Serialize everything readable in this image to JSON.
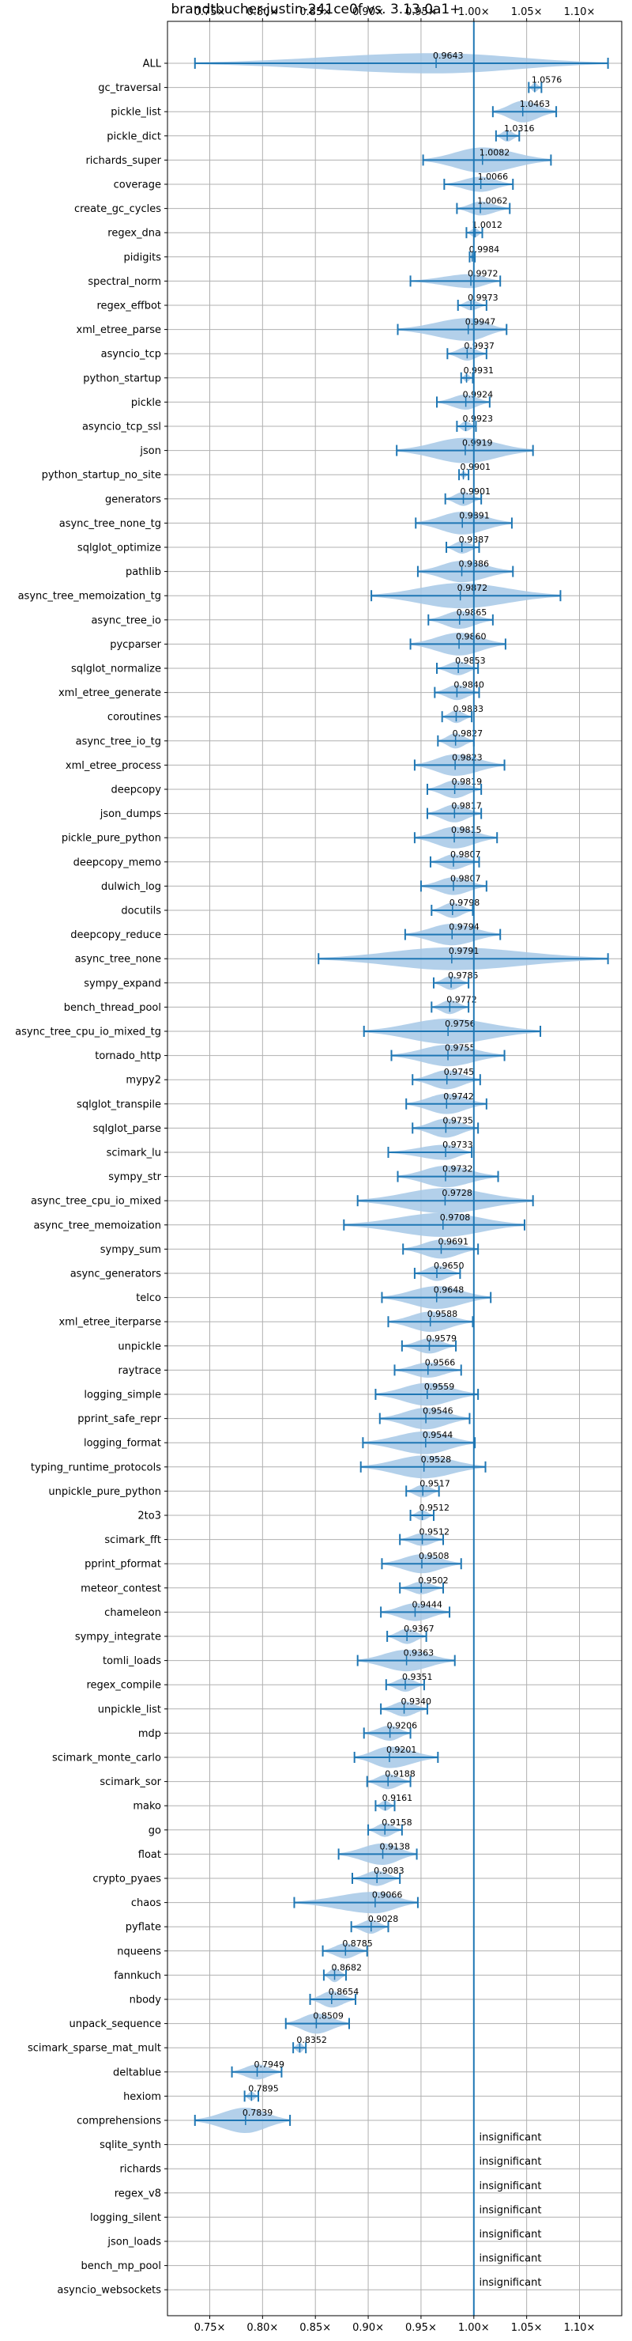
{
  "chart_data": {
    "type": "violin",
    "title": "brandtbucher-justin-241ce0f vs. 3.13.0a1+",
    "xlabel": "",
    "ylabel": "",
    "xlim": [
      0.71,
      1.14
    ],
    "x_ticks": [
      0.75,
      0.8,
      0.85,
      0.9,
      0.95,
      1.0,
      1.05,
      1.1
    ],
    "x_tick_labels": [
      "0.75×",
      "0.80×",
      "0.85×",
      "0.90×",
      "0.95×",
      "1.00×",
      "1.05×",
      "1.10×"
    ],
    "reference_line": 1.0,
    "grid": true,
    "colors": {
      "violin": "#a6c8e6",
      "stat": "#1f77b4",
      "reference": "#1f77b4",
      "grid": "#b0b0b0"
    },
    "insignificant_label": "insignificant",
    "benchmarks": [
      {
        "name": "ALL",
        "value": 0.9643,
        "label": "0.9643",
        "min": 0.736,
        "max": 1.127,
        "width": 0.8
      },
      {
        "name": "gc_traversal",
        "value": 1.0576,
        "label": "1.0576",
        "min": 1.052,
        "max": 1.064,
        "width": 0.35
      },
      {
        "name": "pickle_list",
        "value": 1.0463,
        "label": "1.0463",
        "min": 1.018,
        "max": 1.078,
        "width": 0.85
      },
      {
        "name": "pickle_dict",
        "value": 1.0316,
        "label": "1.0316",
        "min": 1.021,
        "max": 1.043,
        "width": 0.45
      },
      {
        "name": "richards_super",
        "value": 1.0082,
        "label": "1.0082",
        "min": 0.952,
        "max": 1.073,
        "width": 1.0
      },
      {
        "name": "coverage",
        "value": 1.0066,
        "label": "1.0066",
        "min": 0.972,
        "max": 1.037,
        "width": 0.6
      },
      {
        "name": "create_gc_cycles",
        "value": 1.0062,
        "label": "1.0062",
        "min": 0.984,
        "max": 1.034,
        "width": 0.55
      },
      {
        "name": "regex_dna",
        "value": 1.0012,
        "label": "1.0012",
        "min": 0.993,
        "max": 1.008,
        "width": 0.35
      },
      {
        "name": "pidigits",
        "value": 0.9984,
        "label": "0.9984",
        "min": 0.996,
        "max": 1.001,
        "width": 0.2
      },
      {
        "name": "spectral_norm",
        "value": 0.9972,
        "label": "0.9972",
        "min": 0.94,
        "max": 1.025,
        "width": 0.55
      },
      {
        "name": "regex_effbot",
        "value": 0.9973,
        "label": "0.9973",
        "min": 0.985,
        "max": 1.012,
        "width": 0.4
      },
      {
        "name": "xml_etree_parse",
        "value": 0.9947,
        "label": "0.9947",
        "min": 0.928,
        "max": 1.031,
        "width": 0.9
      },
      {
        "name": "asyncio_tcp",
        "value": 0.9937,
        "label": "0.9937",
        "min": 0.975,
        "max": 1.012,
        "width": 0.55
      },
      {
        "name": "python_startup",
        "value": 0.9931,
        "label": "0.9931",
        "min": 0.988,
        "max": 0.999,
        "width": 0.3
      },
      {
        "name": "pickle",
        "value": 0.9924,
        "label": "0.9924",
        "min": 0.965,
        "max": 1.015,
        "width": 0.6
      },
      {
        "name": "asyncio_tcp_ssl",
        "value": 0.9923,
        "label": "0.9923",
        "min": 0.984,
        "max": 1.002,
        "width": 0.4
      },
      {
        "name": "json",
        "value": 0.9919,
        "label": "0.9919",
        "min": 0.927,
        "max": 1.056,
        "width": 1.0
      },
      {
        "name": "python_startup_no_site",
        "value": 0.9901,
        "label": "0.9901",
        "min": 0.986,
        "max": 0.995,
        "width": 0.25
      },
      {
        "name": "generators",
        "value": 0.9901,
        "label": "0.9901",
        "min": 0.973,
        "max": 1.007,
        "width": 0.55
      },
      {
        "name": "async_tree_none_tg",
        "value": 0.9891,
        "label": "0.9891",
        "min": 0.945,
        "max": 1.036,
        "width": 0.9
      },
      {
        "name": "sqlglot_optimize",
        "value": 0.9887,
        "label": "0.9887",
        "min": 0.974,
        "max": 1.005,
        "width": 0.5
      },
      {
        "name": "pathlib",
        "value": 0.9886,
        "label": "0.9886",
        "min": 0.947,
        "max": 1.037,
        "width": 0.85
      },
      {
        "name": "async_tree_memoization_tg",
        "value": 0.9872,
        "label": "0.9872",
        "min": 0.903,
        "max": 1.082,
        "width": 1.0
      },
      {
        "name": "async_tree_io",
        "value": 0.9865,
        "label": "0.9865",
        "min": 0.957,
        "max": 1.018,
        "width": 0.7
      },
      {
        "name": "pycparser",
        "value": 0.986,
        "label": "0.9860",
        "min": 0.94,
        "max": 1.03,
        "width": 0.9
      },
      {
        "name": "sqlglot_normalize",
        "value": 0.9853,
        "label": "0.9853",
        "min": 0.965,
        "max": 1.004,
        "width": 0.55
      },
      {
        "name": "xml_etree_generate",
        "value": 0.984,
        "label": "0.9840",
        "min": 0.963,
        "max": 1.005,
        "width": 0.6
      },
      {
        "name": "coroutines",
        "value": 0.9833,
        "label": "0.9833",
        "min": 0.97,
        "max": 0.998,
        "width": 0.5
      },
      {
        "name": "async_tree_io_tg",
        "value": 0.9827,
        "label": "0.9827",
        "min": 0.966,
        "max": 1.0,
        "width": 0.6
      },
      {
        "name": "xml_etree_process",
        "value": 0.9823,
        "label": "0.9823",
        "min": 0.944,
        "max": 1.029,
        "width": 0.85
      },
      {
        "name": "deepcopy",
        "value": 0.9819,
        "label": "0.9819",
        "min": 0.956,
        "max": 1.007,
        "width": 0.7
      },
      {
        "name": "json_dumps",
        "value": 0.9817,
        "label": "0.9817",
        "min": 0.956,
        "max": 1.007,
        "width": 0.7
      },
      {
        "name": "pickle_pure_python",
        "value": 0.9815,
        "label": "0.9815",
        "min": 0.944,
        "max": 1.022,
        "width": 0.85
      },
      {
        "name": "deepcopy_memo",
        "value": 0.9807,
        "label": "0.9807",
        "min": 0.959,
        "max": 1.005,
        "width": 0.6
      },
      {
        "name": "dulwich_log",
        "value": 0.9807,
        "label": "0.9807",
        "min": 0.95,
        "max": 1.012,
        "width": 0.7
      },
      {
        "name": "docutils",
        "value": 0.9798,
        "label": "0.9798",
        "min": 0.96,
        "max": 0.999,
        "width": 0.6
      },
      {
        "name": "deepcopy_reduce",
        "value": 0.9794,
        "label": "0.9794",
        "min": 0.935,
        "max": 1.025,
        "width": 0.85
      },
      {
        "name": "async_tree_none",
        "value": 0.9791,
        "label": "0.9791",
        "min": 0.853,
        "max": 1.127,
        "width": 0.9
      },
      {
        "name": "sympy_expand",
        "value": 0.9785,
        "label": "0.9785",
        "min": 0.962,
        "max": 0.995,
        "width": 0.55
      },
      {
        "name": "bench_thread_pool",
        "value": 0.9772,
        "label": "0.9772",
        "min": 0.96,
        "max": 0.995,
        "width": 0.55
      },
      {
        "name": "async_tree_cpu_io_mixed_tg",
        "value": 0.9756,
        "label": "0.9756",
        "min": 0.896,
        "max": 1.063,
        "width": 1.0
      },
      {
        "name": "tornado_http",
        "value": 0.9755,
        "label": "0.9755",
        "min": 0.922,
        "max": 1.029,
        "width": 0.85
      },
      {
        "name": "mypy2",
        "value": 0.9745,
        "label": "0.9745",
        "min": 0.942,
        "max": 1.006,
        "width": 0.75
      },
      {
        "name": "sqlglot_transpile",
        "value": 0.9742,
        "label": "0.9742",
        "min": 0.936,
        "max": 1.012,
        "width": 0.8
      },
      {
        "name": "sqlglot_parse",
        "value": 0.9735,
        "label": "0.9735",
        "min": 0.942,
        "max": 1.004,
        "width": 0.75
      },
      {
        "name": "scimark_lu",
        "value": 0.9733,
        "label": "0.9733",
        "min": 0.919,
        "max": 0.998,
        "width": 0.6
      },
      {
        "name": "sympy_str",
        "value": 0.9732,
        "label": "0.9732",
        "min": 0.928,
        "max": 1.023,
        "width": 0.85
      },
      {
        "name": "async_tree_cpu_io_mixed",
        "value": 0.9728,
        "label": "0.9728",
        "min": 0.89,
        "max": 1.056,
        "width": 1.0
      },
      {
        "name": "async_tree_memoization",
        "value": 0.9708,
        "label": "0.9708",
        "min": 0.877,
        "max": 1.048,
        "width": 0.95
      },
      {
        "name": "sympy_sum",
        "value": 0.9691,
        "label": "0.9691",
        "min": 0.933,
        "max": 1.004,
        "width": 0.75
      },
      {
        "name": "async_generators",
        "value": 0.965,
        "label": "0.9650",
        "min": 0.944,
        "max": 0.987,
        "width": 0.6
      },
      {
        "name": "telco",
        "value": 0.9648,
        "label": "0.9648",
        "min": 0.913,
        "max": 1.016,
        "width": 0.9
      },
      {
        "name": "xml_etree_iterparse",
        "value": 0.9588,
        "label": "0.9588",
        "min": 0.919,
        "max": 0.999,
        "width": 0.8
      },
      {
        "name": "unpickle",
        "value": 0.9579,
        "label": "0.9579",
        "min": 0.932,
        "max": 0.983,
        "width": 0.6
      },
      {
        "name": "raytrace",
        "value": 0.9566,
        "label": "0.9566",
        "min": 0.925,
        "max": 0.988,
        "width": 0.6
      },
      {
        "name": "logging_simple",
        "value": 0.9559,
        "label": "0.9559",
        "min": 0.907,
        "max": 1.004,
        "width": 0.9
      },
      {
        "name": "pprint_safe_repr",
        "value": 0.9546,
        "label": "0.9546",
        "min": 0.911,
        "max": 0.996,
        "width": 0.85
      },
      {
        "name": "logging_format",
        "value": 0.9544,
        "label": "0.9544",
        "min": 0.895,
        "max": 1.001,
        "width": 0.9
      },
      {
        "name": "typing_runtime_protocols",
        "value": 0.9528,
        "label": "0.9528",
        "min": 0.893,
        "max": 1.011,
        "width": 0.9
      },
      {
        "name": "unpickle_pure_python",
        "value": 0.9517,
        "label": "0.9517",
        "min": 0.936,
        "max": 0.967,
        "width": 0.5
      },
      {
        "name": "2to3",
        "value": 0.9512,
        "label": "0.9512",
        "min": 0.94,
        "max": 0.962,
        "width": 0.4
      },
      {
        "name": "scimark_fft",
        "value": 0.9512,
        "label": "0.9512",
        "min": 0.93,
        "max": 0.971,
        "width": 0.5
      },
      {
        "name": "pprint_pformat",
        "value": 0.9508,
        "label": "0.9508",
        "min": 0.913,
        "max": 0.988,
        "width": 0.75
      },
      {
        "name": "meteor_contest",
        "value": 0.9502,
        "label": "0.9502",
        "min": 0.93,
        "max": 0.971,
        "width": 0.5
      },
      {
        "name": "chameleon",
        "value": 0.9444,
        "label": "0.9444",
        "min": 0.912,
        "max": 0.977,
        "width": 0.7
      },
      {
        "name": "sympy_integrate",
        "value": 0.9367,
        "label": "0.9367",
        "min": 0.918,
        "max": 0.955,
        "width": 0.6
      },
      {
        "name": "tomli_loads",
        "value": 0.9363,
        "label": "0.9363",
        "min": 0.89,
        "max": 0.982,
        "width": 0.85
      },
      {
        "name": "regex_compile",
        "value": 0.9351,
        "label": "0.9351",
        "min": 0.917,
        "max": 0.953,
        "width": 0.55
      },
      {
        "name": "unpickle_list",
        "value": 0.934,
        "label": "0.9340",
        "min": 0.912,
        "max": 0.956,
        "width": 0.6
      },
      {
        "name": "mdp",
        "value": 0.9206,
        "label": "0.9206",
        "min": 0.896,
        "max": 0.94,
        "width": 0.6
      },
      {
        "name": "scimark_monte_carlo",
        "value": 0.9201,
        "label": "0.9201",
        "min": 0.887,
        "max": 0.966,
        "width": 0.85
      },
      {
        "name": "scimark_sor",
        "value": 0.9188,
        "label": "0.9188",
        "min": 0.899,
        "max": 0.94,
        "width": 0.6
      },
      {
        "name": "mako",
        "value": 0.9161,
        "label": "0.9161",
        "min": 0.907,
        "max": 0.925,
        "width": 0.4
      },
      {
        "name": "go",
        "value": 0.9158,
        "label": "0.9158",
        "min": 0.9,
        "max": 0.932,
        "width": 0.55
      },
      {
        "name": "float",
        "value": 0.9138,
        "label": "0.9138",
        "min": 0.872,
        "max": 0.946,
        "width": 0.85
      },
      {
        "name": "crypto_pyaes",
        "value": 0.9083,
        "label": "0.9083",
        "min": 0.885,
        "max": 0.93,
        "width": 0.6
      },
      {
        "name": "chaos",
        "value": 0.9066,
        "label": "0.9066",
        "min": 0.83,
        "max": 0.947,
        "width": 0.85
      },
      {
        "name": "pyflate",
        "value": 0.9028,
        "label": "0.9028",
        "min": 0.884,
        "max": 0.919,
        "width": 0.55
      },
      {
        "name": "nqueens",
        "value": 0.8785,
        "label": "0.8785",
        "min": 0.857,
        "max": 0.899,
        "width": 0.6
      },
      {
        "name": "fannkuch",
        "value": 0.8682,
        "label": "0.8682",
        "min": 0.858,
        "max": 0.879,
        "width": 0.55
      },
      {
        "name": "nbody",
        "value": 0.8654,
        "label": "0.8654",
        "min": 0.845,
        "max": 0.888,
        "width": 0.65
      },
      {
        "name": "unpack_sequence",
        "value": 0.8509,
        "label": "0.8509",
        "min": 0.822,
        "max": 0.882,
        "width": 0.8
      },
      {
        "name": "scimark_sparse_mat_mult",
        "value": 0.8352,
        "label": "0.8352",
        "min": 0.829,
        "max": 0.841,
        "width": 0.4
      },
      {
        "name": "deltablue",
        "value": 0.7949,
        "label": "0.7949",
        "min": 0.771,
        "max": 0.818,
        "width": 0.6
      },
      {
        "name": "hexiom",
        "value": 0.7895,
        "label": "0.7895",
        "min": 0.783,
        "max": 0.796,
        "width": 0.35
      },
      {
        "name": "comprehensions",
        "value": 0.7839,
        "label": "0.7839",
        "min": 0.736,
        "max": 0.826,
        "width": 1.0
      },
      {
        "name": "sqlite_synth",
        "value": null,
        "label": "insignificant"
      },
      {
        "name": "richards",
        "value": null,
        "label": "insignificant"
      },
      {
        "name": "regex_v8",
        "value": null,
        "label": "insignificant"
      },
      {
        "name": "logging_silent",
        "value": null,
        "label": "insignificant"
      },
      {
        "name": "json_loads",
        "value": null,
        "label": "insignificant"
      },
      {
        "name": "bench_mp_pool",
        "value": null,
        "label": "insignificant"
      },
      {
        "name": "asyncio_websockets",
        "value": null,
        "label": "insignificant"
      }
    ]
  }
}
